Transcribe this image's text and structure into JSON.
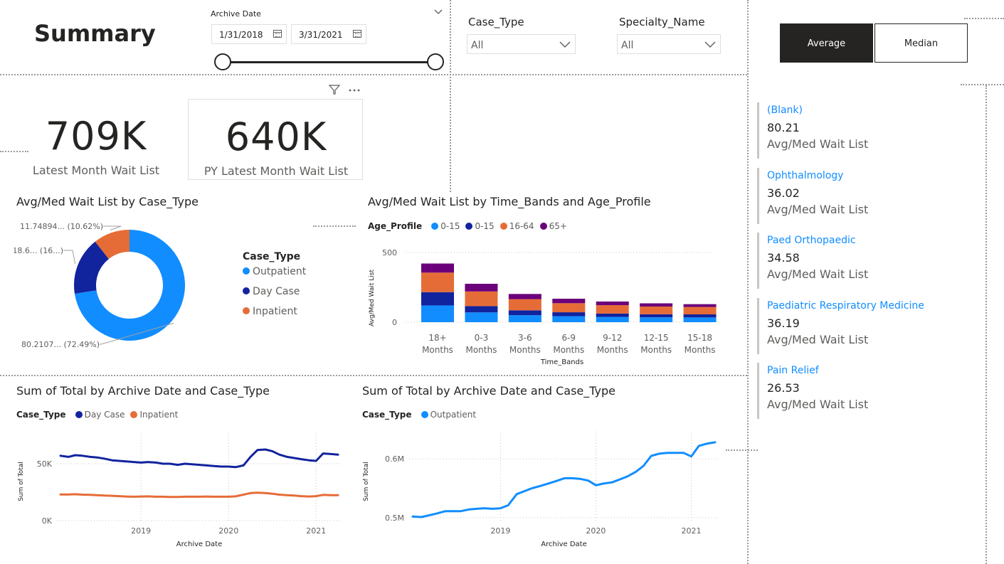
{
  "page": {
    "title": "Summary"
  },
  "date_slicer": {
    "label": "Archive Date",
    "start": "1/31/2018",
    "end": "3/31/2021"
  },
  "case_type_slicer": {
    "label": "Case_Type",
    "value": "All"
  },
  "specialty_slicer": {
    "label": "Specialty_Name",
    "value": "All"
  },
  "toggle": {
    "average_label": "Average",
    "median_label": "Median",
    "selected": "Average"
  },
  "cards": [
    {
      "value": "709K",
      "label": "Latest Month Wait List"
    },
    {
      "value": "640K",
      "label": "PY Latest Month Wait List"
    }
  ],
  "donut": {
    "title": "Avg/Med Wait List by Case_Type",
    "legend_title": "Case_Type",
    "slices": [
      {
        "name": "Outpatient",
        "value": 80.2107,
        "pct": 72.49,
        "label": "80.2107... (72.49%)",
        "color": "#118dff"
      },
      {
        "name": "Day Case",
        "value": 18.6,
        "pct": 16.89,
        "label": "18.6... (16...)",
        "color": "#12239e"
      },
      {
        "name": "Inpatient",
        "value": 11.74894,
        "pct": 10.62,
        "label": "11.74894... (10.62%)",
        "color": "#e66c37"
      }
    ]
  },
  "bar_chart": {
    "title": "Avg/Med Wait List by Time_Bands and Age_Profile",
    "legend_title": "Age_Profile",
    "xlabel": "Time_Bands",
    "ylabel": "Avg/Med Wait List",
    "chart_data": {
      "type": "bar",
      "stacked": true,
      "categories": [
        [
          "18+",
          "Months"
        ],
        [
          "0-3",
          "Months"
        ],
        [
          "3-6",
          "Months"
        ],
        [
          "6-9",
          "Months"
        ],
        [
          "9-12",
          "Months"
        ],
        [
          "12-15",
          "Months"
        ],
        [
          "15-18",
          "Months"
        ]
      ],
      "ylim": [
        0,
        550
      ],
      "yticks": [
        0,
        500
      ],
      "series": [
        {
          "name": "0-15",
          "color": "#118dff",
          "values": [
            120,
            70,
            50,
            43,
            38,
            35,
            34
          ]
        },
        {
          "name": "0-15",
          "color": "#12239e",
          "values": [
            95,
            45,
            35,
            28,
            24,
            22,
            22
          ]
        },
        {
          "name": "16-64",
          "color": "#e66c37",
          "values": [
            140,
            105,
            80,
            65,
            60,
            55,
            53
          ]
        },
        {
          "name": "65+",
          "color": "#6b007b",
          "values": [
            65,
            55,
            37,
            32,
            26,
            23,
            20
          ]
        }
      ]
    }
  },
  "line_left": {
    "title": "Sum of Total by Archive Date and Case_Type",
    "legend_title": "Case_Type",
    "xlabel": "Archive Date",
    "ylabel": "Sum of Total",
    "chart_data": {
      "type": "line",
      "x_ticks": [
        2019,
        2020,
        2021
      ],
      "x_range": [
        2018.08,
        2021.25
      ],
      "ylim": [
        0,
        75000
      ],
      "y_ticks": [
        {
          "v": 0,
          "label": "0K"
        },
        {
          "v": 50000,
          "label": "50K"
        }
      ],
      "series": [
        {
          "name": "Day Case",
          "color": "#12239e",
          "x": [
            2018.08,
            2018.17,
            2018.25,
            2018.33,
            2018.42,
            2018.5,
            2018.58,
            2018.67,
            2018.75,
            2018.83,
            2018.92,
            2019.0,
            2019.08,
            2019.17,
            2019.25,
            2019.33,
            2019.42,
            2019.5,
            2019.58,
            2019.67,
            2019.75,
            2019.83,
            2019.92,
            2020.0,
            2020.08,
            2020.17,
            2020.25,
            2020.33,
            2020.42,
            2020.5,
            2020.58,
            2020.67,
            2020.75,
            2020.83,
            2020.92,
            2021.0,
            2021.08,
            2021.17,
            2021.25
          ],
          "y": [
            57000,
            56000,
            57500,
            57000,
            56000,
            55500,
            54500,
            53000,
            52500,
            52000,
            51500,
            51000,
            51500,
            51000,
            50000,
            50000,
            49000,
            50000,
            49500,
            49000,
            48500,
            48000,
            47500,
            47500,
            47000,
            48500,
            56000,
            62000,
            62500,
            61000,
            58000,
            56000,
            55000,
            54000,
            53000,
            52500,
            59000,
            58500,
            58000
          ]
        },
        {
          "name": "Inpatient",
          "color": "#e66c37",
          "x": [
            2018.08,
            2018.17,
            2018.25,
            2018.33,
            2018.42,
            2018.5,
            2018.58,
            2018.67,
            2018.75,
            2018.83,
            2018.92,
            2019.0,
            2019.08,
            2019.17,
            2019.25,
            2019.33,
            2019.42,
            2019.5,
            2019.58,
            2019.67,
            2019.75,
            2019.83,
            2019.92,
            2020.0,
            2020.08,
            2020.17,
            2020.25,
            2020.33,
            2020.42,
            2020.5,
            2020.58,
            2020.67,
            2020.75,
            2020.83,
            2020.92,
            2021.0,
            2021.08,
            2021.17,
            2021.25
          ],
          "y": [
            23000,
            23000,
            23200,
            22800,
            22700,
            22400,
            22000,
            21800,
            21500,
            21200,
            21000,
            21200,
            21300,
            21000,
            21000,
            20800,
            20800,
            21000,
            21000,
            21000,
            21200,
            21000,
            21000,
            21000,
            21300,
            22800,
            24200,
            24500,
            24200,
            23600,
            22800,
            22400,
            22000,
            21500,
            21200,
            21500,
            22600,
            22400,
            22300
          ]
        }
      ]
    }
  },
  "line_right": {
    "title": "Sum of Total by Archive Date and Case_Type",
    "legend_title": "Case_Type",
    "xlabel": "Archive Date",
    "ylabel": "Sum of Total",
    "chart_data": {
      "type": "line",
      "x_ticks": [
        2019,
        2020,
        2021
      ],
      "x_range": [
        2018.08,
        2021.25
      ],
      "ylim": [
        495000,
        640000
      ],
      "y_ticks": [
        {
          "v": 500000,
          "label": "0.5M"
        },
        {
          "v": 600000,
          "label": "0.6M"
        }
      ],
      "series": [
        {
          "name": "Outpatient",
          "color": "#118dff",
          "x": [
            2018.08,
            2018.17,
            2018.25,
            2018.33,
            2018.42,
            2018.5,
            2018.58,
            2018.67,
            2018.75,
            2018.83,
            2018.92,
            2019.0,
            2019.08,
            2019.17,
            2019.25,
            2019.33,
            2019.42,
            2019.5,
            2019.58,
            2019.67,
            2019.75,
            2019.83,
            2019.92,
            2020.0,
            2020.08,
            2020.17,
            2020.25,
            2020.33,
            2020.42,
            2020.5,
            2020.58,
            2020.67,
            2020.75,
            2020.83,
            2020.92,
            2021.0,
            2021.08,
            2021.17,
            2021.25
          ],
          "y": [
            502000,
            501000,
            504000,
            507000,
            511000,
            511000,
            511000,
            514000,
            515000,
            516000,
            515000,
            516000,
            521000,
            540000,
            545000,
            550000,
            554000,
            558000,
            562000,
            567000,
            567000,
            566000,
            563000,
            555000,
            558000,
            560000,
            565000,
            570000,
            578000,
            588000,
            605000,
            609000,
            610000,
            610000,
            610000,
            604000,
            622000,
            626000,
            628000
          ]
        }
      ]
    }
  },
  "multi_row_card": {
    "items": [
      {
        "name": "(Blank)",
        "value": "80.21",
        "label": "Avg/Med Wait List"
      },
      {
        "name": "Ophthalmology",
        "value": "36.02",
        "label": "Avg/Med Wait List"
      },
      {
        "name": "Paed Orthopaedic",
        "value": "34.58",
        "label": "Avg/Med Wait List"
      },
      {
        "name": "Paediatric Respiratory Medicine",
        "value": "36.19",
        "label": "Avg/Med Wait List"
      },
      {
        "name": "Pain Relief",
        "value": "26.53",
        "label": "Avg/Med Wait List"
      }
    ]
  }
}
